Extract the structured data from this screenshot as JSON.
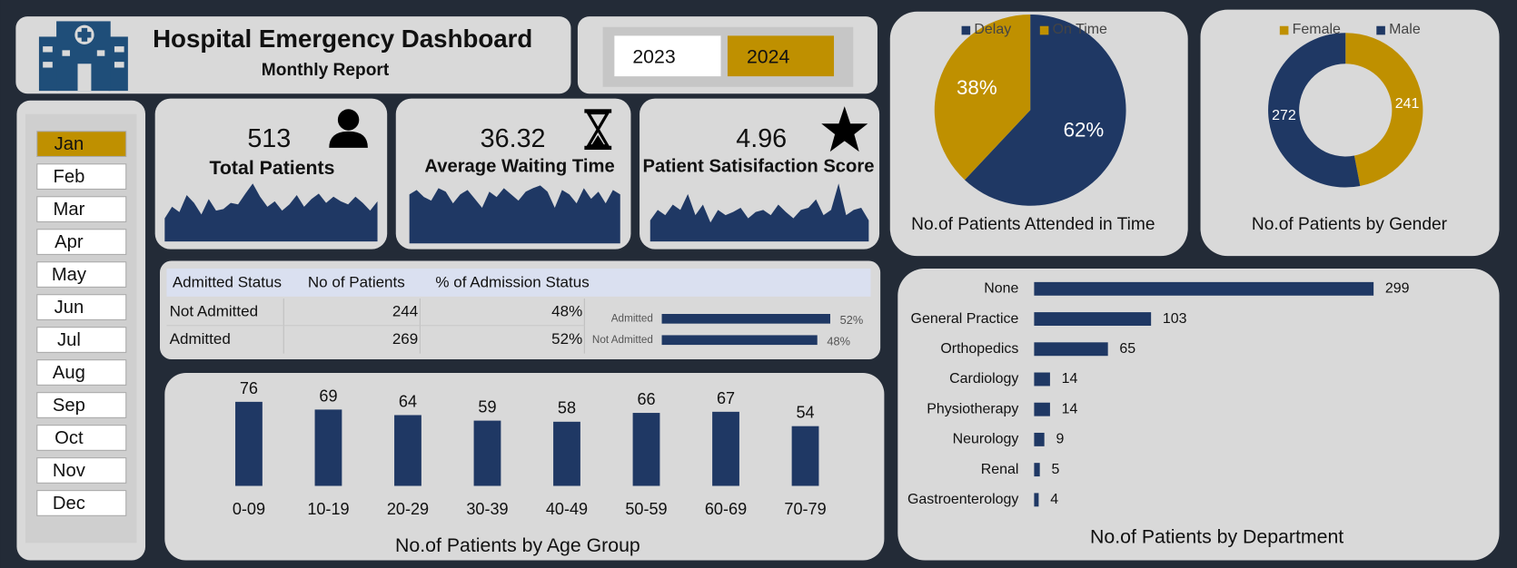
{
  "header": {
    "title": "Hospital Emergency Dashboard",
    "subtitle": "Monthly Report"
  },
  "years": [
    "2023",
    "2024"
  ],
  "months": [
    "Jan",
    "Feb",
    "Mar",
    "Apr",
    "May",
    "Jun",
    "Jul",
    "Aug",
    "Sep",
    "Oct",
    "Nov",
    "Dec"
  ],
  "kpis": [
    {
      "value": 513,
      "label": "Total Patients"
    },
    {
      "value": 36.32,
      "label": "Average Waiting Time"
    },
    {
      "value": 4.96,
      "label": "Patient Satisifaction Score"
    }
  ],
  "table": {
    "header": [
      "Admitted Status",
      "No of Patients",
      "% of Admission Status"
    ],
    "rows": [
      [
        "Not Admitted",
        244,
        "48%"
      ],
      [
        "Admitted",
        269,
        "52%"
      ]
    ]
  },
  "chart_data": [
    {
      "type": "pie",
      "title": "No.of Patients Attended in Time",
      "categories": [
        "Delay",
        "On Time"
      ],
      "values": [
        62,
        38
      ],
      "value_labels": [
        "62%",
        "38%"
      ],
      "colors": [
        "#1f3864",
        "#bf9000"
      ]
    },
    {
      "type": "donut",
      "title": "No.of Patients by Gender",
      "categories": [
        "Female",
        "Male"
      ],
      "values": [
        241,
        272
      ],
      "colors": [
        "#bf9000",
        "#1f3864"
      ]
    },
    {
      "type": "bar",
      "title": "No.of Patients by Age Group",
      "categories": [
        "0-09",
        "10-19",
        "20-29",
        "30-39",
        "40-49",
        "50-59",
        "60-69",
        "70-79"
      ],
      "values": [
        76,
        69,
        64,
        59,
        58,
        66,
        67,
        54
      ],
      "color": "#1f3864"
    },
    {
      "type": "hbar",
      "title": "No.of Patients by Department",
      "categories": [
        "None",
        "General Practice",
        "Orthopedics",
        "Cardiology",
        "Physiotherapy",
        "Neurology",
        "Renal",
        "Gastroenterology"
      ],
      "values": [
        299,
        103,
        65,
        14,
        14,
        9,
        5,
        4
      ],
      "color": "#1f3864"
    },
    {
      "type": "hbar",
      "categories": [
        "Admitted",
        "Not Admitted"
      ],
      "values": [
        52,
        48
      ],
      "value_labels": [
        "52%",
        "48%"
      ],
      "color": "#1f3864"
    },
    {
      "type": "area",
      "color": "#1f3864",
      "values": [
        30,
        45,
        38,
        60,
        50,
        35,
        55,
        40,
        42,
        50,
        48,
        62,
        75,
        58,
        45,
        52,
        40,
        48,
        60,
        45,
        55,
        62,
        50,
        58,
        52,
        48,
        58,
        50,
        40,
        52
      ]
    },
    {
      "type": "area",
      "color": "#1f3864",
      "values": [
        55,
        60,
        52,
        48,
        62,
        58,
        45,
        55,
        60,
        50,
        40,
        58,
        52,
        62,
        55,
        48,
        58,
        62,
        65,
        58,
        40,
        60,
        55,
        45,
        62,
        50,
        58,
        45,
        60,
        55
      ]
    },
    {
      "type": "area",
      "color": "#1f3864",
      "values": [
        20,
        30,
        25,
        35,
        30,
        45,
        25,
        35,
        18,
        30,
        25,
        28,
        32,
        22,
        28,
        30,
        25,
        35,
        28,
        22,
        30,
        32,
        40,
        25,
        30,
        55,
        25,
        30,
        32,
        20
      ]
    }
  ]
}
